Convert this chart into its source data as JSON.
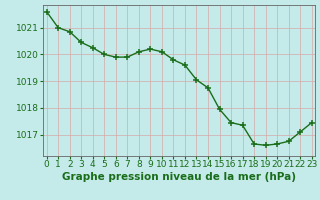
{
  "x": [
    0,
    1,
    2,
    3,
    4,
    5,
    6,
    7,
    8,
    9,
    10,
    11,
    12,
    13,
    14,
    15,
    16,
    17,
    18,
    19,
    20,
    21,
    22,
    23
  ],
  "y": [
    1021.6,
    1021.0,
    1020.85,
    1020.45,
    1020.25,
    1020.0,
    1019.9,
    1019.9,
    1020.1,
    1020.2,
    1020.1,
    1019.8,
    1019.6,
    1019.05,
    1018.75,
    1017.95,
    1017.45,
    1017.35,
    1016.65,
    1016.6,
    1016.65,
    1016.75,
    1017.1,
    1017.45
  ],
  "line_color": "#1a6e1a",
  "marker_color": "#1a6e1a",
  "background_color": "#c5eaea",
  "grid_color": "#d4aaaa",
  "xlabel": "Graphe pression niveau de la mer (hPa)",
  "xlabel_color": "#1a6e1a",
  "ytick_labels": [
    "1017",
    "1018",
    "1019",
    "1020",
    "1021"
  ],
  "yticks": [
    1017,
    1018,
    1019,
    1020,
    1021
  ],
  "ylim": [
    1016.2,
    1021.85
  ],
  "xlim": [
    -0.3,
    23.3
  ],
  "xtick_labels": [
    "0",
    "1",
    "2",
    "3",
    "4",
    "5",
    "6",
    "7",
    "8",
    "9",
    "10",
    "11",
    "12",
    "13",
    "14",
    "15",
    "16",
    "17",
    "18",
    "19",
    "20",
    "21",
    "22",
    "23"
  ],
  "tick_color": "#1a6e1a",
  "axis_color": "#666666",
  "font_size": 6.5,
  "xlabel_fontsize": 7.5,
  "marker_size": 4,
  "line_width": 1.0
}
